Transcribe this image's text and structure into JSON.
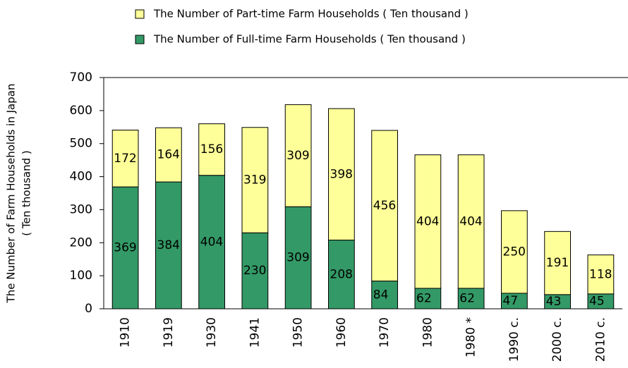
{
  "chart_data": {
    "type": "stacked_bar",
    "y_label": [
      "The Number of Farm Households in Japan",
      "( Ten thousand )"
    ],
    "categories": [
      "1910",
      "1919",
      "1930",
      "1941",
      "1950",
      "1960",
      "1970",
      "1980",
      "1980 *",
      "1990 c.",
      "2000 c.",
      "2010 c."
    ],
    "series": [
      {
        "name": "The Number of Full-time Farm Households ( Ten thousand )",
        "color": "#339966",
        "values": [
          369,
          384,
          404,
          230,
          309,
          208,
          84,
          62,
          62,
          47,
          43,
          45
        ]
      },
      {
        "name": "The Number of Part-time Farm Households ( Ten thousand )",
        "color": "#ffff99",
        "values": [
          172,
          164,
          156,
          319,
          309,
          398,
          456,
          404,
          404,
          250,
          191,
          118
        ]
      }
    ],
    "ylim": [
      0,
      700
    ],
    "yticks": [
      0,
      100,
      200,
      300,
      400,
      500,
      600,
      700
    ],
    "grid": false
  }
}
